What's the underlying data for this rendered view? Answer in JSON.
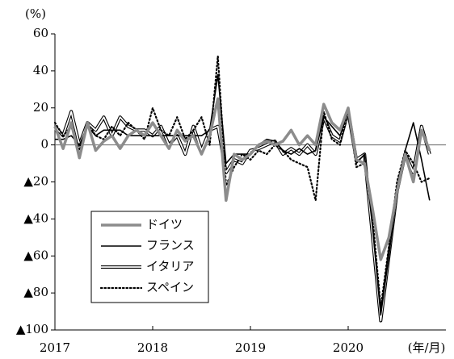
{
  "chart_data": {
    "type": "line",
    "y_label": "(%)",
    "x_label": "(年/月)",
    "categories": [
      "2017",
      null,
      null,
      null,
      null,
      null,
      null,
      null,
      null,
      null,
      null,
      null,
      "2018",
      null,
      null,
      null,
      null,
      null,
      null,
      null,
      null,
      null,
      null,
      null,
      "2019",
      null,
      null,
      null,
      null,
      null,
      null,
      null,
      null,
      null,
      null,
      null,
      "2020",
      null,
      null,
      null,
      null,
      null,
      null,
      null,
      null,
      null,
      null
    ],
    "series": [
      {
        "name": "ドイツ",
        "color": "#8c8c8c",
        "style": "thick",
        "values": [
          10,
          -2,
          12,
          -7,
          12,
          -3,
          2,
          5,
          -2,
          5,
          8,
          5,
          12,
          5,
          -2,
          8,
          2,
          5,
          -5,
          5,
          25,
          -30,
          -5,
          -8,
          -5,
          0,
          2,
          0,
          2,
          8,
          0,
          5,
          0,
          22,
          12,
          8,
          20,
          -8,
          -10,
          -35,
          -62,
          -50,
          -25,
          -5,
          -20,
          8,
          -3
        ]
      },
      {
        "name": "フランス",
        "color": "#000000",
        "style": "solid",
        "values": [
          3,
          3,
          5,
          0,
          10,
          5,
          8,
          8,
          8,
          5,
          5,
          5,
          5,
          5,
          5,
          5,
          5,
          5,
          5,
          8,
          38,
          -10,
          -5,
          -5,
          -5,
          0,
          3,
          2,
          -3,
          -5,
          -2,
          -5,
          -3,
          15,
          10,
          5,
          18,
          -10,
          -5,
          -45,
          -92,
          -60,
          -25,
          -3,
          12,
          -8,
          -30
        ]
      },
      {
        "name": "イタリア",
        "color": "#ffffff",
        "style": "double",
        "values": [
          10,
          5,
          18,
          0,
          12,
          8,
          15,
          5,
          15,
          10,
          8,
          8,
          5,
          10,
          0,
          5,
          -5,
          10,
          -3,
          8,
          10,
          -15,
          -8,
          -10,
          -3,
          -2,
          0,
          2,
          -5,
          -2,
          -5,
          0,
          -5,
          15,
          5,
          2,
          18,
          -8,
          -5,
          -50,
          -95,
          -60,
          -25,
          -5,
          -15,
          10,
          -5
        ]
      },
      {
        "name": "スペイン",
        "color": "#000000",
        "style": "dotted",
        "values": [
          12,
          5,
          10,
          -3,
          12,
          5,
          3,
          10,
          5,
          12,
          8,
          3,
          20,
          8,
          5,
          15,
          3,
          8,
          15,
          0,
          48,
          -22,
          -12,
          -5,
          -8,
          -3,
          -5,
          0,
          -3,
          -8,
          -10,
          -12,
          -30,
          18,
          3,
          0,
          20,
          -12,
          -10,
          -40,
          -88,
          -55,
          -20,
          -3,
          -10,
          -20,
          -18
        ]
      }
    ],
    "ylim": [
      -100,
      60
    ],
    "yticks": [
      {
        "value": -100,
        "label": "▲100"
      },
      {
        "value": -80,
        "label": "▲80"
      },
      {
        "value": -60,
        "label": "▲60"
      },
      {
        "value": -40,
        "label": "▲40"
      },
      {
        "value": -20,
        "label": "▲20"
      },
      0,
      20,
      40,
      60
    ],
    "grid": false,
    "legend": "lower-left"
  }
}
